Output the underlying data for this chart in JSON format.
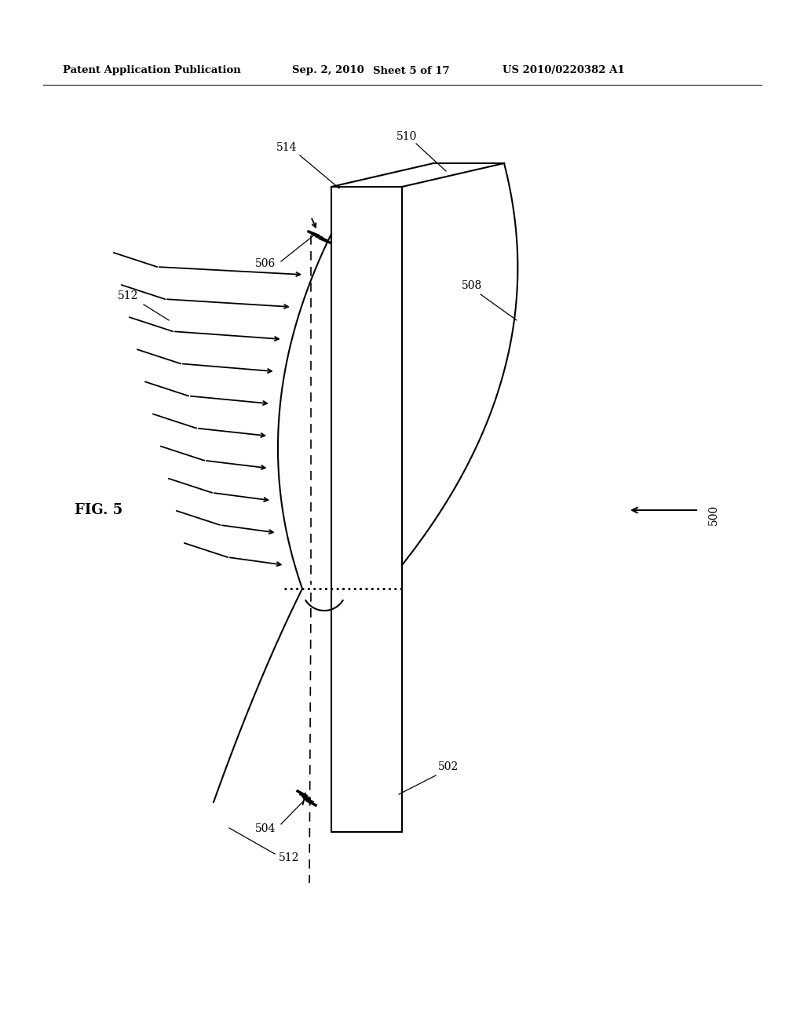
{
  "bg_color": "#ffffff",
  "line_color": "#000000",
  "header_text": "Patent Application Publication",
  "header_date": "Sep. 2, 2010",
  "header_sheet": "Sheet 5 of 17",
  "header_patent": "US 2010/0220382 A1",
  "fig_label": "FIG. 5",
  "label_500": "500",
  "label_502": "502",
  "label_504": "504",
  "label_506": "506",
  "label_508": "508",
  "label_510": "510",
  "label_512": "512",
  "label_514": "514"
}
